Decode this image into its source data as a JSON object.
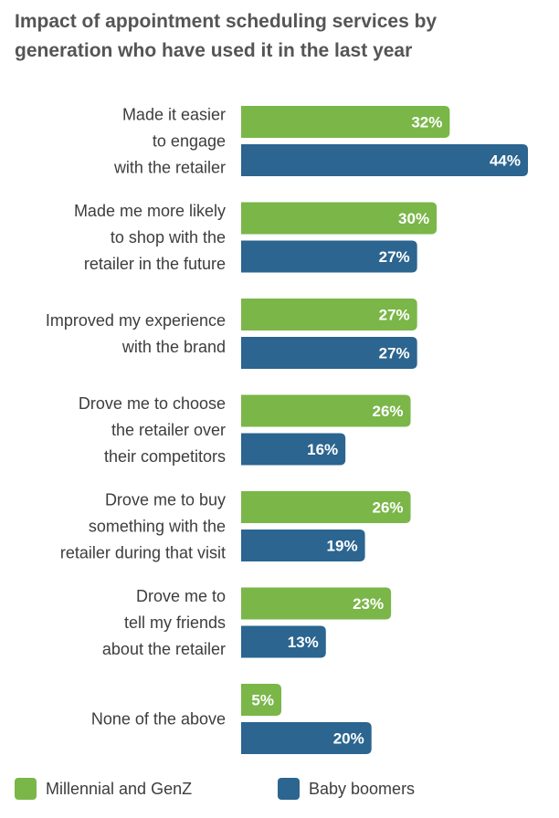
{
  "chart_data": {
    "type": "bar",
    "orientation": "horizontal",
    "title": "Impact of appointment scheduling services by generation who have used it in the last year",
    "title_lines": [
      "Impact of appointment scheduling services by",
      "generation who have used it in the last year"
    ],
    "categories": [
      [
        "Made it easier",
        "to engage",
        "with the retailer"
      ],
      [
        "Made me more likely",
        "to shop with the",
        "retailer in the future"
      ],
      [
        "Improved my experience",
        "with the brand"
      ],
      [
        "Drove me to choose",
        "the retailer over",
        "their competitors"
      ],
      [
        "Drove me to buy",
        "something with the",
        "retailer during that visit"
      ],
      [
        "Drove me to",
        "tell my friends",
        "about the retailer"
      ],
      [
        "None of the above"
      ]
    ],
    "series": [
      {
        "name": "Millennial and GenZ",
        "color": "#7ab648",
        "values": [
          32,
          30,
          27,
          26,
          26,
          23,
          5
        ]
      },
      {
        "name": "Baby boomers",
        "color": "#2b6590",
        "values": [
          44,
          27,
          27,
          16,
          19,
          13,
          20
        ]
      }
    ],
    "value_suffix": "%",
    "xlim": [
      0,
      44
    ],
    "xlabel": "",
    "ylabel": "",
    "grid": false,
    "legend_position": "bottom"
  }
}
